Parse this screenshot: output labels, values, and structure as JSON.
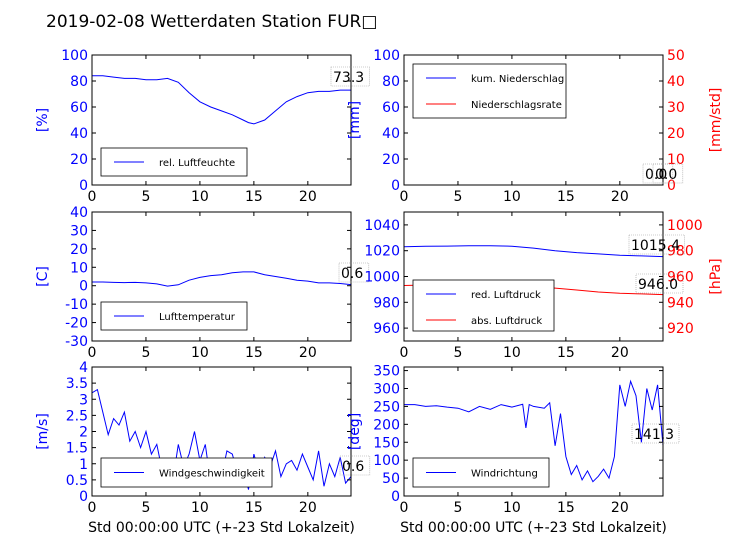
{
  "title": "2019-02-08 Wetterdaten Station FUR□",
  "colors": {
    "blue": "#0000ff",
    "red": "#ff0000",
    "black": "#000000"
  },
  "chart_data": [
    {
      "type": "line",
      "ylabel": "[%]",
      "xlim": [
        0,
        24
      ],
      "ylim": [
        0,
        100
      ],
      "xticks": [
        0,
        5,
        10,
        15,
        20
      ],
      "yticks": [
        0,
        20,
        40,
        60,
        80,
        100
      ],
      "legend": {
        "placement": "lower-left",
        "entries": [
          "rel. Luftfeuchte"
        ]
      },
      "annotation": "73.3",
      "series": [
        {
          "name": "rel. Luftfeuchte",
          "color": "#0000ff",
          "x": [
            0,
            1,
            2,
            3,
            4,
            5,
            6,
            7,
            8,
            9,
            10,
            11,
            12,
            13,
            14,
            14.5,
            15,
            16,
            17,
            18,
            19,
            20,
            21,
            22,
            23,
            24
          ],
          "y": [
            84,
            84,
            83,
            82,
            82,
            81,
            81,
            82,
            79,
            71,
            64,
            60,
            57,
            54,
            50,
            48,
            47,
            50,
            57,
            64,
            68,
            71,
            72,
            72,
            73,
            73
          ]
        }
      ]
    },
    {
      "type": "line",
      "ylabel": "[mm]",
      "ylabel_right": "[mm/std]",
      "xlim": [
        0,
        24
      ],
      "ylim": [
        0,
        100
      ],
      "ylim_right": [
        0,
        50
      ],
      "xticks": [
        0,
        5,
        10,
        15,
        20
      ],
      "yticks": [
        0,
        20,
        40,
        60,
        80,
        100
      ],
      "yticks_right": [
        0,
        10,
        20,
        30,
        40,
        50
      ],
      "legend": {
        "placement": "upper-left",
        "entries": [
          "kum. Niederschlag",
          "Niederschlagsrate"
        ]
      },
      "annotation": "0.0",
      "annotation2": "0.0",
      "series": [
        {
          "name": "kum. Niederschlag",
          "color": "#0000ff",
          "x": [
            0,
            24
          ],
          "y": [
            0,
            0
          ]
        },
        {
          "name": "Niederschlagsrate",
          "color": "#ff0000",
          "axis": "right",
          "x": [
            0,
            24
          ],
          "y": [
            0,
            0
          ]
        }
      ]
    },
    {
      "type": "line",
      "ylabel": "[C]",
      "xlim": [
        0,
        24
      ],
      "ylim": [
        -30,
        40
      ],
      "xticks": [
        0,
        5,
        10,
        15,
        20
      ],
      "yticks": [
        -30,
        -20,
        -10,
        0,
        10,
        20,
        30,
        40
      ],
      "legend": {
        "placement": "lower-left",
        "entries": [
          "Lufttemperatur"
        ]
      },
      "annotation": "0.6",
      "series": [
        {
          "name": "Lufttemperatur",
          "color": "#0000ff",
          "x": [
            0,
            1,
            2,
            3,
            4,
            5,
            6,
            7,
            8,
            9,
            10,
            11,
            12,
            13,
            14,
            15,
            16,
            17,
            18,
            19,
            20,
            21,
            22,
            23,
            24
          ],
          "y": [
            2,
            2,
            1.8,
            1.7,
            1.8,
            1.5,
            1,
            -0.2,
            0.5,
            3,
            4.5,
            5.5,
            6,
            7,
            7.5,
            7.5,
            6,
            5,
            4,
            3,
            2.5,
            1.5,
            1.5,
            1.2,
            0.6
          ]
        }
      ]
    },
    {
      "type": "line",
      "ylabel_right": "[hPa]",
      "xlim": [
        0,
        24
      ],
      "ylim": [
        950,
        1050
      ],
      "ylim_right": [
        910,
        1010
      ],
      "xticks": [
        0,
        5,
        10,
        15,
        20
      ],
      "yticks": [
        960,
        980,
        1000,
        1020,
        1040
      ],
      "yticks_right": [
        920,
        940,
        960,
        980,
        1000
      ],
      "legend": {
        "placement": "lower-left",
        "entries": [
          "red. Luftdruck",
          "abs. Luftdruck"
        ]
      },
      "annotation": "1015.4",
      "annotation2": "946.0",
      "series": [
        {
          "name": "red. Luftdruck",
          "color": "#0000ff",
          "x": [
            0,
            2,
            4,
            6,
            8,
            10,
            12,
            14,
            16,
            18,
            20,
            22,
            24
          ],
          "y": [
            1023,
            1023.4,
            1023.6,
            1023.8,
            1023.9,
            1023.5,
            1022,
            1020,
            1018.5,
            1017.5,
            1016.5,
            1016,
            1015.4
          ]
        },
        {
          "name": "abs. Luftdruck",
          "color": "#ff0000",
          "axis": "right",
          "x": [
            0,
            2,
            4,
            6,
            8,
            10,
            12,
            14,
            16,
            18,
            20,
            22,
            24
          ],
          "y": [
            953,
            953.4,
            953.6,
            953.8,
            953.9,
            953.5,
            952.5,
            951,
            949.5,
            948,
            947,
            946.5,
            946.0
          ]
        }
      ]
    },
    {
      "type": "line",
      "ylabel": "[m/s]",
      "xlabel": "Std 00:00:00 UTC (+-23 Std Lokalzeit)",
      "xlim": [
        0,
        24
      ],
      "ylim": [
        0,
        4
      ],
      "xticks": [
        0,
        5,
        10,
        15,
        20
      ],
      "yticks": [
        0,
        0.5,
        1,
        1.5,
        2,
        2.5,
        3,
        3.5,
        4
      ],
      "legend": {
        "placement": "lower-left",
        "entries": [
          "Windgeschwindigkeit"
        ]
      },
      "annotation": "0.6",
      "series": [
        {
          "name": "Windgeschwindigkeit",
          "color": "#0000ff",
          "x": [
            0,
            0.5,
            1,
            1.5,
            2,
            2.5,
            3,
            3.5,
            4,
            4.5,
            5,
            5.5,
            6,
            6.5,
            7,
            7.5,
            8,
            8.5,
            9,
            9.5,
            10,
            10.5,
            11,
            11.5,
            12,
            12.5,
            13,
            13.5,
            14,
            14.5,
            15,
            15.5,
            16,
            16.5,
            17,
            17.5,
            18,
            18.5,
            19,
            19.5,
            20,
            20.5,
            21,
            21.5,
            22,
            22.5,
            23,
            23.5,
            24
          ],
          "y": [
            3.2,
            3.3,
            2.6,
            1.9,
            2.4,
            2.2,
            2.6,
            1.7,
            2.0,
            1.5,
            2.0,
            1.3,
            1.6,
            0.8,
            1.0,
            0.5,
            1.6,
            0.9,
            1.3,
            2.0,
            1.1,
            1.6,
            0.4,
            1.0,
            0.6,
            1.4,
            1.3,
            0.7,
            0.9,
            0.2,
            1.3,
            0.7,
            1.2,
            0.9,
            1.4,
            0.6,
            1.0,
            1.1,
            0.8,
            1.3,
            0.9,
            0.5,
            1.4,
            0.3,
            1.0,
            0.6,
            1.2,
            0.4,
            0.6
          ]
        }
      ]
    },
    {
      "type": "line",
      "ylabel": "[deg]",
      "xlabel": "Std 00:00:00 UTC (+-23 Std Lokalzeit)",
      "xlim": [
        0,
        24
      ],
      "ylim": [
        0,
        360
      ],
      "xticks": [
        0,
        5,
        10,
        15,
        20
      ],
      "yticks": [
        0,
        50,
        100,
        150,
        200,
        250,
        300,
        350
      ],
      "legend": {
        "placement": "lower-left",
        "entries": [
          "Windrichtung"
        ]
      },
      "annotation": "141.3",
      "series": [
        {
          "name": "Windrichtung",
          "color": "#0000ff",
          "x": [
            0,
            1,
            2,
            3,
            4,
            5,
            6,
            7,
            8,
            9,
            10,
            11,
            11.3,
            11.6,
            12,
            13,
            13.5,
            14,
            14.5,
            15,
            15.5,
            16,
            16.5,
            17,
            17.5,
            18,
            18.5,
            19,
            19.5,
            20,
            20.5,
            21,
            21.5,
            22,
            22.5,
            23,
            23.5,
            24
          ],
          "y": [
            255,
            255,
            250,
            252,
            248,
            245,
            235,
            250,
            242,
            255,
            248,
            256,
            190,
            255,
            250,
            245,
            260,
            140,
            230,
            110,
            60,
            85,
            45,
            70,
            40,
            55,
            75,
            50,
            110,
            310,
            250,
            320,
            280,
            150,
            300,
            240,
            310,
            141.3
          ]
        }
      ]
    }
  ]
}
